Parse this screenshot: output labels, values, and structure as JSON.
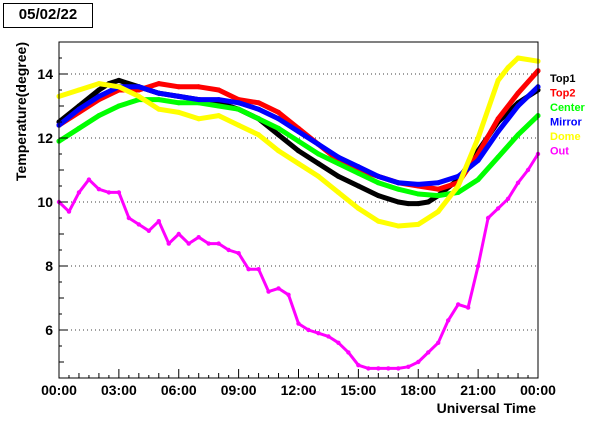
{
  "date_label": "05/02/22",
  "chart_data": {
    "type": "scatter",
    "title": "",
    "xlabel": "Universal Time",
    "ylabel": "Temperature(degree)",
    "xlim": [
      0,
      24
    ],
    "ylim": [
      4.5,
      15
    ],
    "x_ticks": [
      0,
      3,
      6,
      9,
      12,
      15,
      18,
      21,
      24
    ],
    "x_tick_labels": [
      "00:00",
      "03:00",
      "06:00",
      "09:00",
      "12:00",
      "15:00",
      "18:00",
      "21:00",
      "00:00"
    ],
    "y_ticks": [
      6,
      8,
      10,
      12,
      14
    ],
    "y_tick_labels": [
      "6",
      "8",
      "10",
      "12",
      "14"
    ],
    "grid": "horizontal dotted",
    "legend_position": "right",
    "series": [
      {
        "name": "Top1",
        "color": "#000000",
        "x": [
          0,
          1,
          2,
          2.5,
          3,
          4,
          5,
          6,
          7,
          8,
          9,
          10,
          11,
          12,
          13,
          14,
          15,
          16,
          17,
          17.5,
          18,
          18.5,
          19,
          20,
          21,
          22,
          23,
          24
        ],
        "y": [
          12.5,
          13.0,
          13.5,
          13.7,
          13.8,
          13.6,
          13.4,
          13.3,
          13.2,
          13.1,
          12.9,
          12.6,
          12.1,
          11.6,
          11.2,
          10.8,
          10.5,
          10.2,
          10.0,
          9.95,
          9.95,
          10.0,
          10.2,
          10.7,
          11.6,
          12.5,
          13.1,
          13.5
        ]
      },
      {
        "name": "Top2",
        "color": "#ff0000",
        "x": [
          0,
          1,
          2,
          3,
          4,
          5,
          6,
          7,
          8,
          9,
          10,
          11,
          12,
          13,
          14,
          15,
          16,
          17,
          18,
          19,
          20,
          21,
          22,
          23,
          24
        ],
        "y": [
          12.4,
          12.8,
          13.2,
          13.5,
          13.5,
          13.7,
          13.6,
          13.6,
          13.5,
          13.2,
          13.1,
          12.8,
          12.3,
          11.8,
          11.3,
          11.0,
          10.8,
          10.6,
          10.5,
          10.4,
          10.6,
          11.5,
          12.6,
          13.4,
          14.1
        ]
      },
      {
        "name": "Center",
        "color": "#00ff00",
        "x": [
          0,
          1,
          2,
          3,
          4,
          5,
          6,
          7,
          8,
          9,
          10,
          11,
          12,
          13,
          14,
          15,
          16,
          17,
          18,
          19,
          20,
          21,
          22,
          23,
          24
        ],
        "y": [
          11.9,
          12.3,
          12.7,
          13.0,
          13.2,
          13.2,
          13.1,
          13.1,
          13.0,
          12.9,
          12.6,
          12.3,
          11.9,
          11.5,
          11.2,
          10.9,
          10.6,
          10.4,
          10.25,
          10.2,
          10.3,
          10.7,
          11.4,
          12.1,
          12.7
        ]
      },
      {
        "name": "Mirror",
        "color": "#0000ff",
        "x": [
          0,
          1,
          2,
          3,
          4,
          5,
          6,
          7,
          8,
          9,
          10,
          11,
          12,
          13,
          14,
          15,
          16,
          17,
          18,
          19,
          20,
          21,
          22,
          23,
          24
        ],
        "y": [
          12.4,
          12.9,
          13.3,
          13.6,
          13.6,
          13.4,
          13.3,
          13.2,
          13.2,
          13.1,
          12.9,
          12.6,
          12.2,
          11.8,
          11.4,
          11.1,
          10.8,
          10.6,
          10.55,
          10.6,
          10.8,
          11.3,
          12.2,
          13.0,
          13.6
        ]
      },
      {
        "name": "Dome",
        "color": "#ffff00",
        "x": [
          0,
          1,
          2,
          3,
          4,
          5,
          6,
          7,
          8,
          9,
          10,
          11,
          12,
          13,
          14,
          15,
          16,
          17,
          18,
          19,
          20,
          21,
          22,
          22.5,
          23,
          24
        ],
        "y": [
          13.3,
          13.5,
          13.7,
          13.6,
          13.3,
          12.9,
          12.8,
          12.6,
          12.7,
          12.4,
          12.1,
          11.6,
          11.2,
          10.8,
          10.3,
          9.8,
          9.4,
          9.25,
          9.3,
          9.7,
          10.5,
          12.0,
          13.8,
          14.2,
          14.5,
          14.4
        ]
      },
      {
        "name": "Out",
        "color": "#ff00ff",
        "x": [
          0,
          0.5,
          1,
          1.5,
          2,
          2.5,
          3,
          3.5,
          4,
          4.5,
          5,
          5.5,
          6,
          6.5,
          7,
          7.5,
          8,
          8.5,
          9,
          9.5,
          10,
          10.5,
          11,
          11.5,
          12,
          12.5,
          13,
          13.5,
          14,
          14.5,
          15,
          15.5,
          16,
          16.5,
          17,
          17.5,
          18,
          18.5,
          19,
          19.5,
          20,
          20.5,
          21,
          21.5,
          22,
          22.5,
          23,
          23.5,
          24
        ],
        "y": [
          10.0,
          9.7,
          10.3,
          10.7,
          10.4,
          10.3,
          10.3,
          9.5,
          9.3,
          9.1,
          9.4,
          8.7,
          9.0,
          8.7,
          8.9,
          8.7,
          8.7,
          8.5,
          8.4,
          7.9,
          7.9,
          7.2,
          7.3,
          7.1,
          6.2,
          6.0,
          5.9,
          5.8,
          5.6,
          5.3,
          4.9,
          4.8,
          4.8,
          4.8,
          4.8,
          4.85,
          5.0,
          5.3,
          5.6,
          6.3,
          6.8,
          6.7,
          8.0,
          9.5,
          9.8,
          10.1,
          10.6,
          11.0,
          11.5
        ]
      }
    ]
  }
}
